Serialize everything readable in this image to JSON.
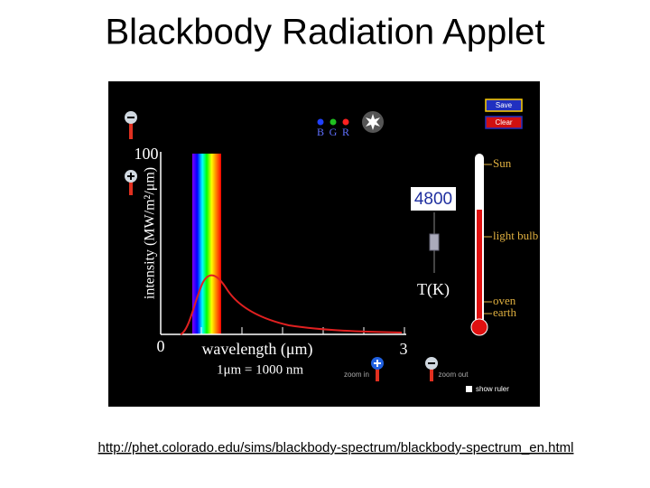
{
  "header": {
    "title": "Blackbody Radiation Applet"
  },
  "applet": {
    "buttons": {
      "save": "Save",
      "clear": "Clear"
    },
    "color_labels": [
      "B",
      "G",
      "R"
    ],
    "graph": {
      "y_max": 100,
      "y_label": "intensity (MW/m²/μm)",
      "x_min": 0,
      "x_max": 3,
      "x_label": "wavelength (μm)",
      "unit_note": "1μm = 1000 nm"
    },
    "zoom": {
      "in": "zoom in",
      "out": "zoom out"
    },
    "temperature": {
      "value": 4800,
      "unit": "T(K)"
    },
    "thermometer_labels": [
      "Sun",
      "light bulb",
      "oven",
      "earth"
    ],
    "show_ruler": "show ruler"
  },
  "footer": {
    "url": "http://phet.colorado.edu/sims/blackbody-spectrum/blackbody-spectrum_en.html"
  }
}
